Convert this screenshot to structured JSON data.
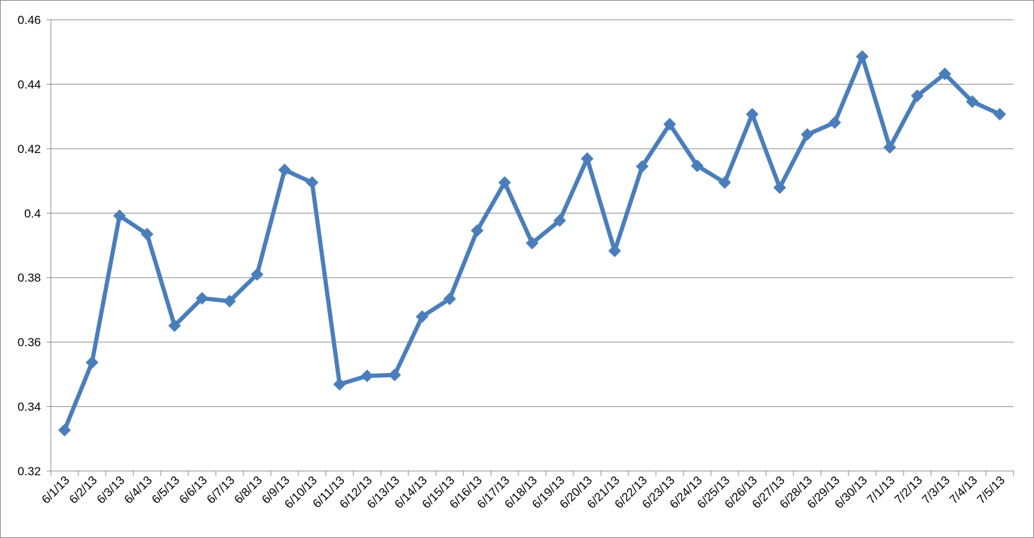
{
  "chart_data": {
    "type": "line",
    "categories": [
      "6/1/13",
      "6/2/13",
      "6/3/13",
      "6/4/13",
      "6/5/13",
      "6/6/13",
      "6/7/13",
      "6/8/13",
      "6/9/13",
      "6/10/13",
      "6/11/13",
      "6/12/13",
      "6/13/13",
      "6/14/13",
      "6/15/13",
      "6/16/13",
      "6/17/13",
      "6/18/13",
      "6/19/13",
      "6/20/13",
      "6/21/13",
      "6/22/13",
      "6/23/13",
      "6/24/13",
      "6/25/13",
      "6/26/13",
      "6/27/13",
      "6/28/13",
      "6/29/13",
      "6/30/13",
      "7/1/13",
      "7/2/13",
      "7/3/13",
      "7/4/13",
      "7/5/13"
    ],
    "values": [
      0.3327,
      0.3537,
      0.3992,
      0.3935,
      0.3651,
      0.3736,
      0.3727,
      0.381,
      0.4134,
      0.4095,
      0.3469,
      0.3495,
      0.3498,
      0.3679,
      0.3734,
      0.3946,
      0.4095,
      0.3907,
      0.3977,
      0.4169,
      0.3883,
      0.4145,
      0.4276,
      0.4147,
      0.4095,
      0.4307,
      0.4079,
      0.4244,
      0.4281,
      0.4486,
      0.4204,
      0.4364,
      0.4432,
      0.4346,
      0.4307
    ],
    "color": "#4a7ebb",
    "ylim": [
      0.32,
      0.46
    ],
    "yticks": [
      0.32,
      0.34,
      0.36,
      0.38,
      0.4,
      0.42,
      0.44,
      0.46
    ],
    "grid": true
  }
}
